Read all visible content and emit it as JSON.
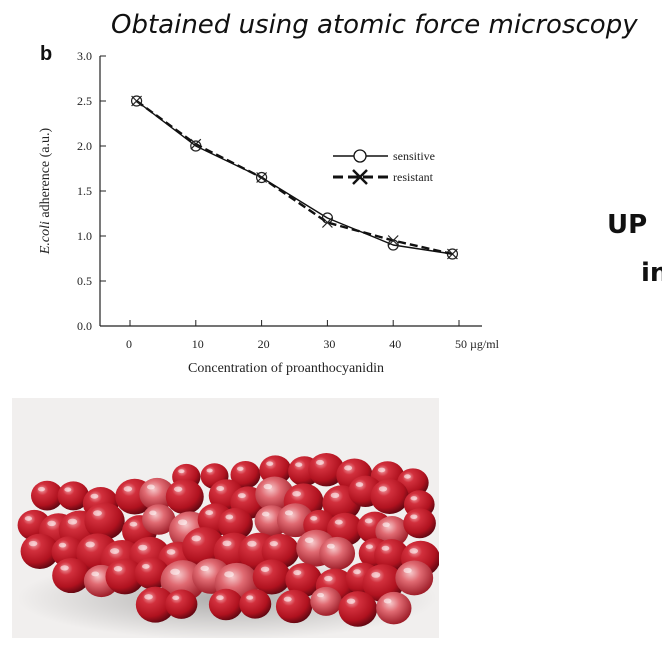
{
  "caption": "Obtained using atomic force microscopy",
  "side_text": [
    "UP",
    "in"
  ],
  "chart_data": {
    "type": "line",
    "panel_label": "b",
    "x": [
      1,
      10,
      20,
      30,
      40,
      49
    ],
    "x_ticks": [
      0,
      10,
      20,
      30,
      40,
      50
    ],
    "x_tick_labels": [
      "0",
      "10",
      "20",
      "30",
      "40",
      "50 µg/ml"
    ],
    "y_ticks": [
      0.0,
      0.5,
      1.0,
      1.5,
      2.0,
      2.5,
      3.0
    ],
    "y_tick_labels": [
      "0.0",
      "0.5",
      "1.0",
      "1.5",
      "2.0",
      "2.5",
      "3.0"
    ],
    "xlim": [
      0,
      50
    ],
    "ylim": [
      0,
      3.0
    ],
    "xlabel": "Concentration of proanthocyanidin",
    "ylabel_italic": "E.coli",
    "ylabel_rest": " adherence (a.u.)",
    "legend_position": "upper-right",
    "grid": false,
    "series": [
      {
        "name": "sensitive",
        "marker": "circle",
        "line": "solid",
        "values": [
          2.5,
          2.0,
          1.65,
          1.2,
          0.9,
          0.8
        ]
      },
      {
        "name": "resistant",
        "marker": "x",
        "line": "dashed",
        "values": [
          2.5,
          2.02,
          1.65,
          1.15,
          0.95,
          0.8
        ]
      }
    ]
  },
  "photo": {
    "subject": "cranberries",
    "background": "#f1efee",
    "berry_color": "#b0121f"
  }
}
